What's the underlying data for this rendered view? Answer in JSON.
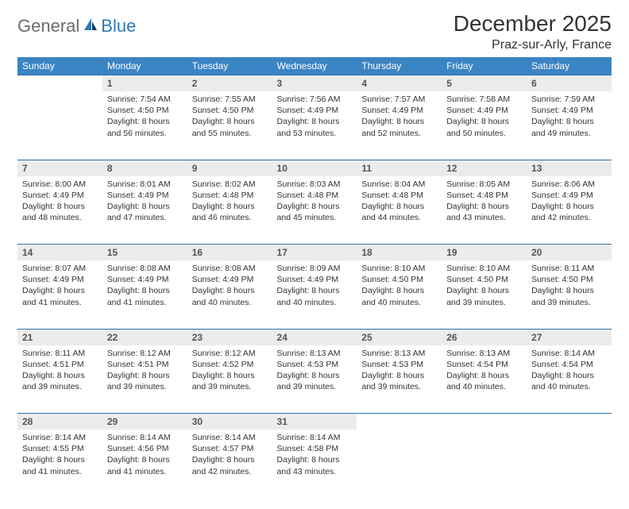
{
  "logo": {
    "a": "General",
    "b": "Blue"
  },
  "title": "December 2025",
  "location": "Praz-sur-Arly, France",
  "colors": {
    "header_bg": "#3b84c4",
    "header_text": "#ffffff",
    "daynum_bg": "#ececec",
    "rule": "#2f6fa3",
    "logo_gray": "#6b6b6b",
    "logo_blue": "#2f78b7",
    "body_text": "#333333"
  },
  "typography": {
    "title_fontsize": 28,
    "location_fontsize": 16,
    "th_fontsize": 12,
    "cell_fontsize": 10.5
  },
  "day_headers": [
    "Sunday",
    "Monday",
    "Tuesday",
    "Wednesday",
    "Thursday",
    "Friday",
    "Saturday"
  ],
  "weeks": [
    {
      "nums": [
        "",
        "1",
        "2",
        "3",
        "4",
        "5",
        "6"
      ],
      "cells": [
        {},
        {
          "sunrise": "Sunrise: 7:54 AM",
          "sunset": "Sunset: 4:50 PM",
          "dl1": "Daylight: 8 hours",
          "dl2": "and 56 minutes."
        },
        {
          "sunrise": "Sunrise: 7:55 AM",
          "sunset": "Sunset: 4:50 PM",
          "dl1": "Daylight: 8 hours",
          "dl2": "and 55 minutes."
        },
        {
          "sunrise": "Sunrise: 7:56 AM",
          "sunset": "Sunset: 4:49 PM",
          "dl1": "Daylight: 8 hours",
          "dl2": "and 53 minutes."
        },
        {
          "sunrise": "Sunrise: 7:57 AM",
          "sunset": "Sunset: 4:49 PM",
          "dl1": "Daylight: 8 hours",
          "dl2": "and 52 minutes."
        },
        {
          "sunrise": "Sunrise: 7:58 AM",
          "sunset": "Sunset: 4:49 PM",
          "dl1": "Daylight: 8 hours",
          "dl2": "and 50 minutes."
        },
        {
          "sunrise": "Sunrise: 7:59 AM",
          "sunset": "Sunset: 4:49 PM",
          "dl1": "Daylight: 8 hours",
          "dl2": "and 49 minutes."
        }
      ]
    },
    {
      "nums": [
        "7",
        "8",
        "9",
        "10",
        "11",
        "12",
        "13"
      ],
      "cells": [
        {
          "sunrise": "Sunrise: 8:00 AM",
          "sunset": "Sunset: 4:49 PM",
          "dl1": "Daylight: 8 hours",
          "dl2": "and 48 minutes."
        },
        {
          "sunrise": "Sunrise: 8:01 AM",
          "sunset": "Sunset: 4:49 PM",
          "dl1": "Daylight: 8 hours",
          "dl2": "and 47 minutes."
        },
        {
          "sunrise": "Sunrise: 8:02 AM",
          "sunset": "Sunset: 4:48 PM",
          "dl1": "Daylight: 8 hours",
          "dl2": "and 46 minutes."
        },
        {
          "sunrise": "Sunrise: 8:03 AM",
          "sunset": "Sunset: 4:48 PM",
          "dl1": "Daylight: 8 hours",
          "dl2": "and 45 minutes."
        },
        {
          "sunrise": "Sunrise: 8:04 AM",
          "sunset": "Sunset: 4:48 PM",
          "dl1": "Daylight: 8 hours",
          "dl2": "and 44 minutes."
        },
        {
          "sunrise": "Sunrise: 8:05 AM",
          "sunset": "Sunset: 4:48 PM",
          "dl1": "Daylight: 8 hours",
          "dl2": "and 43 minutes."
        },
        {
          "sunrise": "Sunrise: 8:06 AM",
          "sunset": "Sunset: 4:49 PM",
          "dl1": "Daylight: 8 hours",
          "dl2": "and 42 minutes."
        }
      ]
    },
    {
      "nums": [
        "14",
        "15",
        "16",
        "17",
        "18",
        "19",
        "20"
      ],
      "cells": [
        {
          "sunrise": "Sunrise: 8:07 AM",
          "sunset": "Sunset: 4:49 PM",
          "dl1": "Daylight: 8 hours",
          "dl2": "and 41 minutes."
        },
        {
          "sunrise": "Sunrise: 8:08 AM",
          "sunset": "Sunset: 4:49 PM",
          "dl1": "Daylight: 8 hours",
          "dl2": "and 41 minutes."
        },
        {
          "sunrise": "Sunrise: 8:08 AM",
          "sunset": "Sunset: 4:49 PM",
          "dl1": "Daylight: 8 hours",
          "dl2": "and 40 minutes."
        },
        {
          "sunrise": "Sunrise: 8:09 AM",
          "sunset": "Sunset: 4:49 PM",
          "dl1": "Daylight: 8 hours",
          "dl2": "and 40 minutes."
        },
        {
          "sunrise": "Sunrise: 8:10 AM",
          "sunset": "Sunset: 4:50 PM",
          "dl1": "Daylight: 8 hours",
          "dl2": "and 40 minutes."
        },
        {
          "sunrise": "Sunrise: 8:10 AM",
          "sunset": "Sunset: 4:50 PM",
          "dl1": "Daylight: 8 hours",
          "dl2": "and 39 minutes."
        },
        {
          "sunrise": "Sunrise: 8:11 AM",
          "sunset": "Sunset: 4:50 PM",
          "dl1": "Daylight: 8 hours",
          "dl2": "and 39 minutes."
        }
      ]
    },
    {
      "nums": [
        "21",
        "22",
        "23",
        "24",
        "25",
        "26",
        "27"
      ],
      "cells": [
        {
          "sunrise": "Sunrise: 8:11 AM",
          "sunset": "Sunset: 4:51 PM",
          "dl1": "Daylight: 8 hours",
          "dl2": "and 39 minutes."
        },
        {
          "sunrise": "Sunrise: 8:12 AM",
          "sunset": "Sunset: 4:51 PM",
          "dl1": "Daylight: 8 hours",
          "dl2": "and 39 minutes."
        },
        {
          "sunrise": "Sunrise: 8:12 AM",
          "sunset": "Sunset: 4:52 PM",
          "dl1": "Daylight: 8 hours",
          "dl2": "and 39 minutes."
        },
        {
          "sunrise": "Sunrise: 8:13 AM",
          "sunset": "Sunset: 4:53 PM",
          "dl1": "Daylight: 8 hours",
          "dl2": "and 39 minutes."
        },
        {
          "sunrise": "Sunrise: 8:13 AM",
          "sunset": "Sunset: 4:53 PM",
          "dl1": "Daylight: 8 hours",
          "dl2": "and 39 minutes."
        },
        {
          "sunrise": "Sunrise: 8:13 AM",
          "sunset": "Sunset: 4:54 PM",
          "dl1": "Daylight: 8 hours",
          "dl2": "and 40 minutes."
        },
        {
          "sunrise": "Sunrise: 8:14 AM",
          "sunset": "Sunset: 4:54 PM",
          "dl1": "Daylight: 8 hours",
          "dl2": "and 40 minutes."
        }
      ]
    },
    {
      "nums": [
        "28",
        "29",
        "30",
        "31",
        "",
        "",
        ""
      ],
      "cells": [
        {
          "sunrise": "Sunrise: 8:14 AM",
          "sunset": "Sunset: 4:55 PM",
          "dl1": "Daylight: 8 hours",
          "dl2": "and 41 minutes."
        },
        {
          "sunrise": "Sunrise: 8:14 AM",
          "sunset": "Sunset: 4:56 PM",
          "dl1": "Daylight: 8 hours",
          "dl2": "and 41 minutes."
        },
        {
          "sunrise": "Sunrise: 8:14 AM",
          "sunset": "Sunset: 4:57 PM",
          "dl1": "Daylight: 8 hours",
          "dl2": "and 42 minutes."
        },
        {
          "sunrise": "Sunrise: 8:14 AM",
          "sunset": "Sunset: 4:58 PM",
          "dl1": "Daylight: 8 hours",
          "dl2": "and 43 minutes."
        },
        {},
        {},
        {}
      ]
    }
  ]
}
